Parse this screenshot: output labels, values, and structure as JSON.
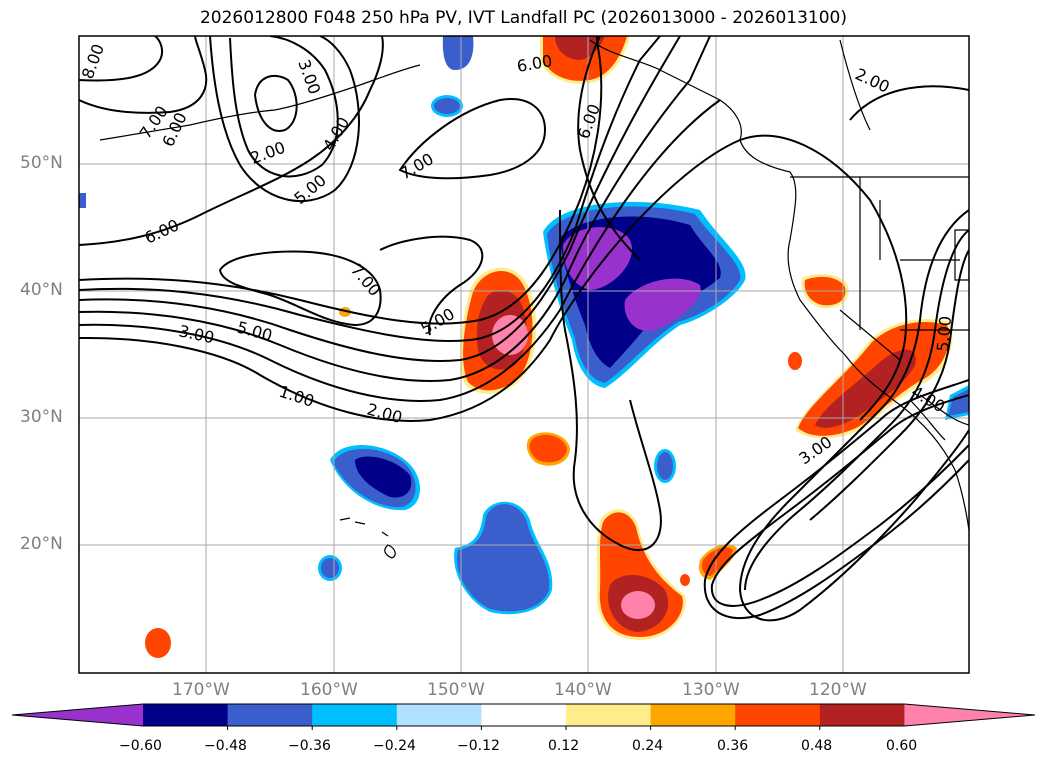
{
  "title": "2026012800 F048 250 hPa PV, IVT Landfall PC (2026013000 - 2026013100)",
  "lat_labels": [
    "50°N",
    "40°N",
    "30°N",
    "20°N"
  ],
  "lon_labels": [
    "170°W",
    "160°W",
    "150°W",
    "140°W",
    "130°W",
    "120°W"
  ],
  "contour_labels": [
    "8.00",
    "3.00",
    "7.00",
    "6.00",
    "2.00",
    "4.00",
    "5.00",
    "6.00",
    "7.00",
    "6.00",
    "6.00",
    "2.00",
    "7.00",
    "5.00",
    "3.00",
    "5.00",
    "1.00",
    "2.00",
    "3.00",
    "5.00",
    "4.00"
  ],
  "colorbar": {
    "colors": [
      "#9932cc",
      "#00008b",
      "#3a5fcd",
      "#00bfff",
      "#b0e2ff",
      "#ffffff",
      "#ffec8b",
      "#ffa500",
      "#ff4500",
      "#b22222",
      "#ff82ab"
    ],
    "ticks": [
      "−0.60",
      "−0.48",
      "−0.36",
      "−0.24",
      "−0.12",
      "0.12",
      "0.24",
      "0.36",
      "0.48",
      "0.60"
    ]
  },
  "colors": {
    "map_frame": "#000000",
    "gridline": "#a9a9a9",
    "contour": "#000000",
    "coastline": "#000000"
  }
}
